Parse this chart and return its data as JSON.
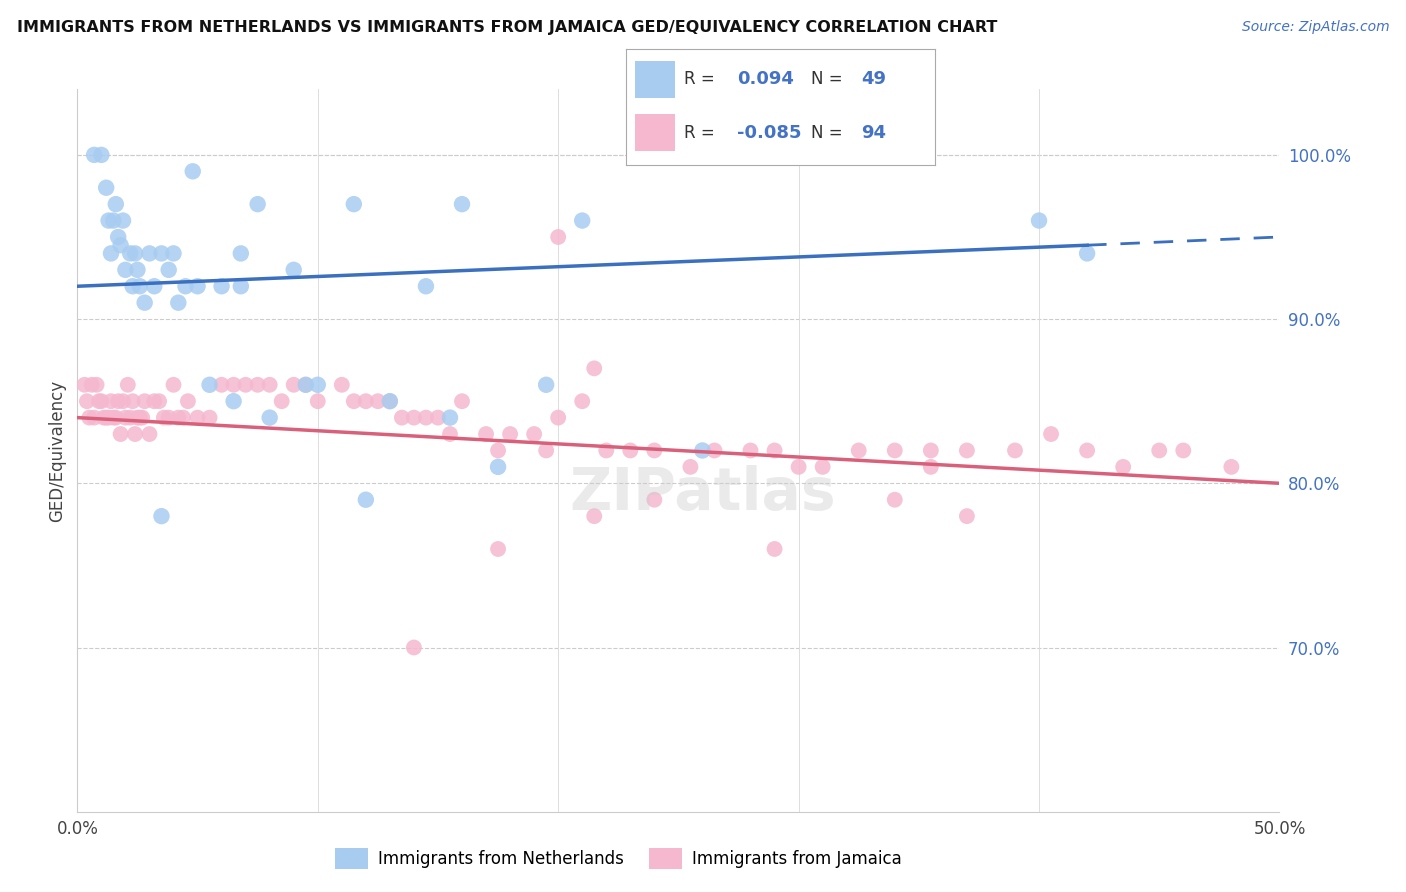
{
  "title": "IMMIGRANTS FROM NETHERLANDS VS IMMIGRANTS FROM JAMAICA GED/EQUIVALENCY CORRELATION CHART",
  "source": "Source: ZipAtlas.com",
  "ylabel": "GED/Equivalency",
  "xlim": [
    0.0,
    0.5
  ],
  "ylim": [
    0.6,
    1.04
  ],
  "ytick_right_labels": [
    "100.0%",
    "90.0%",
    "80.0%",
    "70.0%"
  ],
  "ytick_right_positions": [
    1.0,
    0.9,
    0.8,
    0.7
  ],
  "xtick_labels": [
    "0.0%",
    "",
    "",
    "",
    "",
    "50.0%"
  ],
  "xtick_positions": [
    0.0,
    0.1,
    0.2,
    0.3,
    0.4,
    0.5
  ],
  "netherlands_R": 0.094,
  "netherlands_N": 49,
  "jamaica_R": -0.085,
  "jamaica_N": 94,
  "netherlands_color": "#A8CCF0",
  "jamaica_color": "#F5B8CE",
  "trend_netherlands_color": "#3B6FBF",
  "trend_jamaica_color": "#D9607A",
  "legend_label_netherlands": "Immigrants from Netherlands",
  "legend_label_jamaica": "Immigrants from Jamaica",
  "nl_trend_x": [
    0.0,
    0.42,
    0.5
  ],
  "nl_trend_y": [
    0.92,
    0.945,
    0.95
  ],
  "ja_trend_x": [
    0.0,
    0.5
  ],
  "ja_trend_y": [
    0.84,
    0.8
  ],
  "nl_x": [
    0.007,
    0.01,
    0.012,
    0.013,
    0.014,
    0.015,
    0.016,
    0.017,
    0.018,
    0.019,
    0.02,
    0.022,
    0.023,
    0.024,
    0.025,
    0.026,
    0.028,
    0.03,
    0.032,
    0.035,
    0.038,
    0.04,
    0.042,
    0.045,
    0.048,
    0.05,
    0.055,
    0.06,
    0.065,
    0.068,
    0.075,
    0.08,
    0.09,
    0.095,
    0.1,
    0.115,
    0.12,
    0.13,
    0.145,
    0.155,
    0.16,
    0.175,
    0.195,
    0.21,
    0.26,
    0.4,
    0.42,
    0.068,
    0.035
  ],
  "nl_y": [
    1.0,
    1.0,
    0.98,
    0.96,
    0.94,
    0.96,
    0.97,
    0.95,
    0.945,
    0.96,
    0.93,
    0.94,
    0.92,
    0.94,
    0.93,
    0.92,
    0.91,
    0.94,
    0.92,
    0.94,
    0.93,
    0.94,
    0.91,
    0.92,
    0.99,
    0.92,
    0.86,
    0.92,
    0.85,
    0.94,
    0.97,
    0.84,
    0.93,
    0.86,
    0.86,
    0.97,
    0.79,
    0.85,
    0.92,
    0.84,
    0.97,
    0.81,
    0.86,
    0.96,
    0.82,
    0.96,
    0.94,
    0.92,
    0.78
  ],
  "ja_x": [
    0.003,
    0.004,
    0.005,
    0.006,
    0.007,
    0.008,
    0.009,
    0.01,
    0.011,
    0.012,
    0.013,
    0.014,
    0.015,
    0.016,
    0.017,
    0.018,
    0.019,
    0.02,
    0.021,
    0.022,
    0.023,
    0.024,
    0.025,
    0.026,
    0.027,
    0.028,
    0.03,
    0.032,
    0.034,
    0.036,
    0.038,
    0.04,
    0.042,
    0.044,
    0.046,
    0.05,
    0.055,
    0.06,
    0.065,
    0.07,
    0.075,
    0.08,
    0.085,
    0.09,
    0.095,
    0.1,
    0.11,
    0.115,
    0.12,
    0.125,
    0.13,
    0.135,
    0.14,
    0.145,
    0.15,
    0.155,
    0.16,
    0.17,
    0.175,
    0.18,
    0.19,
    0.195,
    0.2,
    0.21,
    0.22,
    0.23,
    0.24,
    0.255,
    0.265,
    0.28,
    0.29,
    0.3,
    0.31,
    0.325,
    0.34,
    0.355,
    0.37,
    0.39,
    0.405,
    0.42,
    0.435,
    0.45,
    0.46,
    0.48,
    0.2,
    0.215,
    0.29,
    0.14,
    0.175,
    0.215,
    0.24,
    0.34,
    0.355,
    0.37
  ],
  "ja_y": [
    0.86,
    0.85,
    0.84,
    0.86,
    0.84,
    0.86,
    0.85,
    0.85,
    0.84,
    0.84,
    0.84,
    0.85,
    0.84,
    0.84,
    0.85,
    0.83,
    0.85,
    0.84,
    0.86,
    0.84,
    0.85,
    0.83,
    0.84,
    0.84,
    0.84,
    0.85,
    0.83,
    0.85,
    0.85,
    0.84,
    0.84,
    0.86,
    0.84,
    0.84,
    0.85,
    0.84,
    0.84,
    0.86,
    0.86,
    0.86,
    0.86,
    0.86,
    0.85,
    0.86,
    0.86,
    0.85,
    0.86,
    0.85,
    0.85,
    0.85,
    0.85,
    0.84,
    0.84,
    0.84,
    0.84,
    0.83,
    0.85,
    0.83,
    0.82,
    0.83,
    0.83,
    0.82,
    0.84,
    0.85,
    0.82,
    0.82,
    0.82,
    0.81,
    0.82,
    0.82,
    0.82,
    0.81,
    0.81,
    0.82,
    0.82,
    0.81,
    0.82,
    0.82,
    0.83,
    0.82,
    0.81,
    0.82,
    0.82,
    0.81,
    0.95,
    0.87,
    0.76,
    0.7,
    0.76,
    0.78,
    0.79,
    0.79,
    0.82,
    0.78
  ]
}
